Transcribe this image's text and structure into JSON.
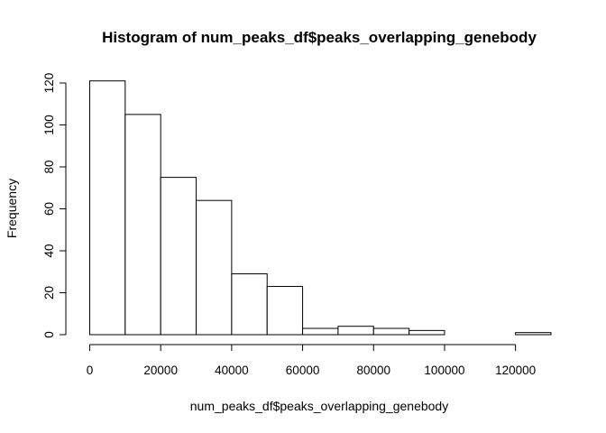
{
  "chart_data": {
    "type": "bar",
    "title": "Histogram of num_peaks_df$peaks_overlapping_genebody",
    "xlabel": "num_peaks_df$peaks_overlapping_genebody",
    "ylabel": "Frequency",
    "bin_edges": [
      0,
      10000,
      20000,
      30000,
      40000,
      50000,
      60000,
      70000,
      80000,
      90000,
      100000,
      110000,
      120000,
      130000
    ],
    "values": [
      121,
      105,
      75,
      64,
      29,
      23,
      3,
      4,
      3,
      2,
      0,
      0,
      1
    ],
    "xlim": [
      0,
      130000
    ],
    "ylim": [
      0,
      120
    ],
    "x_ticks": [
      0,
      20000,
      40000,
      60000,
      80000,
      100000,
      120000
    ],
    "y_ticks": [
      0,
      20,
      40,
      60,
      80,
      100,
      120
    ],
    "grid": false,
    "legend": "none"
  }
}
